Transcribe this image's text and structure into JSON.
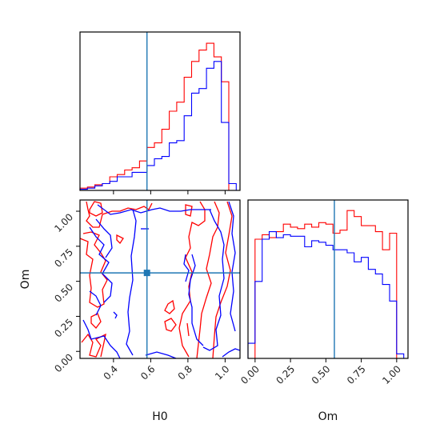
{
  "chart_data": [
    {
      "type": "histogram",
      "panel": "H0-marginal",
      "xlim": [
        0.22,
        1.08
      ],
      "truth": 0.58,
      "bin_edges": [
        0.22,
        0.26,
        0.3,
        0.34,
        0.38,
        0.42,
        0.46,
        0.5,
        0.54,
        0.58,
        0.62,
        0.66,
        0.7,
        0.74,
        0.78,
        0.82,
        0.86,
        0.9,
        0.94,
        0.98,
        1.02,
        1.06
      ],
      "series": [
        {
          "color": "#ff0000",
          "values": [
            0.01,
            0.015,
            0.025,
            0.03,
            0.06,
            0.07,
            0.09,
            0.1,
            0.13,
            0.19,
            0.21,
            0.27,
            0.35,
            0.39,
            0.5,
            0.57,
            0.62,
            0.65,
            0.59,
            0.48,
            0.0
          ]
        },
        {
          "color": "#0000ff",
          "values": [
            0.005,
            0.01,
            0.02,
            0.03,
            0.04,
            0.06,
            0.06,
            0.08,
            0.08,
            0.11,
            0.14,
            0.15,
            0.21,
            0.22,
            0.33,
            0.43,
            0.45,
            0.54,
            0.57,
            0.3,
            0.03
          ]
        }
      ],
      "ylim": [
        0,
        0.7
      ]
    },
    {
      "type": "contour",
      "panel": "H0-Om",
      "xlabel": "H0",
      "ylabel": "Om",
      "xlim": [
        0.22,
        1.08
      ],
      "ylim": [
        -0.05,
        1.08
      ],
      "xticks": [
        "0.4",
        "0.6",
        "0.8",
        "1.0"
      ],
      "yticks": [
        "0.00",
        "0.25",
        "0.50",
        "0.75",
        "1.00"
      ],
      "truth": {
        "x": 0.58,
        "y": 0.56
      },
      "series": [
        {
          "color": "#ff0000"
        },
        {
          "color": "#0000ff"
        }
      ]
    },
    {
      "type": "histogram",
      "panel": "Om-marginal",
      "xlabel": "Om",
      "xlim": [
        -0.05,
        1.08
      ],
      "xticks": [
        "0.00",
        "0.25",
        "0.50",
        "0.75",
        "1.00"
      ],
      "truth": 0.56,
      "bin_edges": [
        -0.05,
        0.0,
        0.05,
        0.1,
        0.15,
        0.2,
        0.25,
        0.3,
        0.35,
        0.4,
        0.45,
        0.5,
        0.55,
        0.6,
        0.65,
        0.7,
        0.75,
        0.8,
        0.85,
        0.9,
        0.95,
        1.0,
        1.05
      ],
      "series": [
        {
          "color": "#ff0000",
          "values": [
            0.0,
            0.79,
            0.82,
            0.8,
            0.84,
            0.89,
            0.87,
            0.86,
            0.89,
            0.87,
            0.9,
            0.89,
            0.83,
            0.85,
            0.98,
            0.94,
            0.88,
            0.88,
            0.84,
            0.72,
            0.83,
            0.0
          ]
        },
        {
          "color": "#0000ff",
          "values": [
            0.1,
            0.51,
            0.79,
            0.84,
            0.8,
            0.82,
            0.81,
            0.81,
            0.74,
            0.78,
            0.77,
            0.75,
            0.72,
            0.72,
            0.7,
            0.64,
            0.67,
            0.59,
            0.56,
            0.49,
            0.38,
            0.03
          ]
        }
      ],
      "ylim": [
        0,
        1.05
      ]
    }
  ],
  "colors": {
    "red": "#ff0000",
    "blue": "#0000ff",
    "truth": "#1f77b4"
  }
}
